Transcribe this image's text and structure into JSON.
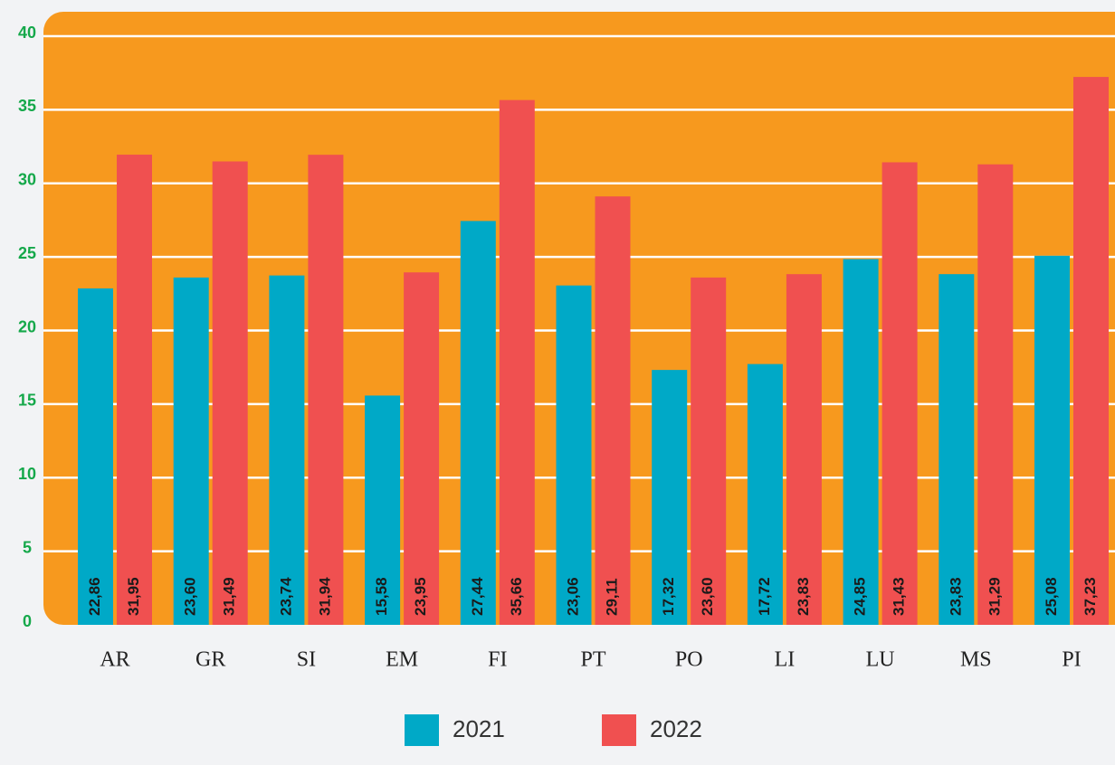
{
  "chart_data": {
    "type": "bar",
    "categories": [
      "AR",
      "GR",
      "SI",
      "EM",
      "FI",
      "PT",
      "PO",
      "LI",
      "LU",
      "MS",
      "PI"
    ],
    "series": [
      {
        "name": "2021",
        "color": "#00a9c7",
        "values": [
          22.86,
          23.6,
          23.74,
          15.58,
          27.44,
          23.06,
          17.32,
          17.72,
          24.85,
          23.83,
          25.08
        ],
        "value_labels": [
          "22,86",
          "23,60",
          "23,74",
          "15,58",
          "27,44",
          "23,06",
          "17,32",
          "17,72",
          "24,85",
          "23,83",
          "25,08"
        ]
      },
      {
        "name": "2022",
        "color": "#f05050",
        "values": [
          31.95,
          31.49,
          31.94,
          23.95,
          35.66,
          29.11,
          23.6,
          23.83,
          31.43,
          31.29,
          37.23
        ],
        "value_labels": [
          "31,95",
          "31,49",
          "31,94",
          "23,95",
          "35,66",
          "29,11",
          "23,60",
          "23,83",
          "31,43",
          "31,29",
          "37,23"
        ]
      }
    ],
    "ylim": [
      0,
      40
    ],
    "yticks": [
      0,
      5,
      10,
      15,
      20,
      25,
      30,
      35,
      40
    ],
    "grid": true,
    "plot_background": "#f7991e",
    "legend": "bottom"
  }
}
